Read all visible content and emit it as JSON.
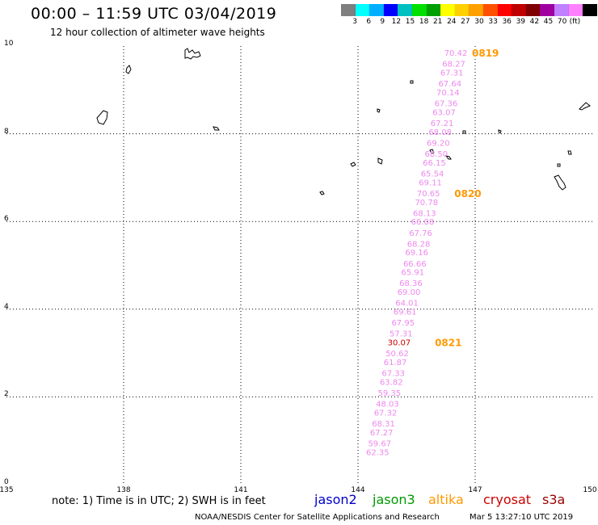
{
  "header": {
    "title": "00:00 – 11:59 UTC 03/04/2019",
    "subtitle": "12 hour collection of altimeter wave heights"
  },
  "colorbar": {
    "colors": [
      "#7f7f7f",
      "#00ffff",
      "#00b0ff",
      "#0000ff",
      "#00c0c0",
      "#00e000",
      "#00a000",
      "#ffff00",
      "#ffd000",
      "#ffa000",
      "#ff5000",
      "#ff0000",
      "#c00000",
      "#800000",
      "#a000a0",
      "#c080ff",
      "#ff80ff",
      "#000000"
    ],
    "labels": [
      "3",
      "6",
      "9",
      "12",
      "15",
      "18",
      "21",
      "24",
      "27",
      "30",
      "33",
      "36",
      "39",
      "42",
      "45",
      "70"
    ],
    "unit": "(ft)"
  },
  "map": {
    "lat_labels": [
      "10",
      "8",
      "6",
      "4",
      "2",
      "0"
    ],
    "lon_labels": [
      "135",
      "138",
      "141",
      "144",
      "147",
      "150"
    ],
    "lat_range": [
      0,
      10
    ],
    "lon_range": [
      135,
      150
    ],
    "track_color": "#ee88ee",
    "high_value_color": "#cc0000",
    "time_label_color": "#ff9900",
    "swh_values": [
      {
        "value": "70.42",
        "lon": 146.8,
        "lat": 9.85
      },
      {
        "value": "68.27",
        "lon": 146.75,
        "lat": 9.6
      },
      {
        "value": "67.31",
        "lon": 146.7,
        "lat": 9.4
      },
      {
        "value": "67.64",
        "lon": 146.65,
        "lat": 9.15
      },
      {
        "value": "70.14",
        "lon": 146.6,
        "lat": 8.95
      },
      {
        "value": "67.36",
        "lon": 146.55,
        "lat": 8.7
      },
      {
        "value": "63.07",
        "lon": 146.5,
        "lat": 8.5
      },
      {
        "value": "67.21",
        "lon": 146.45,
        "lat": 8.25
      },
      {
        "value": "68.08",
        "lon": 146.4,
        "lat": 8.05
      },
      {
        "value": "69.20",
        "lon": 146.35,
        "lat": 7.8
      },
      {
        "value": "68.50",
        "lon": 146.3,
        "lat": 7.55
      },
      {
        "value": "66.15",
        "lon": 146.25,
        "lat": 7.35
      },
      {
        "value": "65.54",
        "lon": 146.2,
        "lat": 7.1
      },
      {
        "value": "69.11",
        "lon": 146.15,
        "lat": 6.9
      },
      {
        "value": "70.65",
        "lon": 146.1,
        "lat": 6.65
      },
      {
        "value": "70.78",
        "lon": 146.05,
        "lat": 6.45
      },
      {
        "value": "68.13",
        "lon": 146.0,
        "lat": 6.2
      },
      {
        "value": "66.08",
        "lon": 145.95,
        "lat": 6.0
      },
      {
        "value": "67.76",
        "lon": 145.9,
        "lat": 5.75
      },
      {
        "value": "68.28",
        "lon": 145.85,
        "lat": 5.5
      },
      {
        "value": "69.16",
        "lon": 145.8,
        "lat": 5.3
      },
      {
        "value": "66.66",
        "lon": 145.75,
        "lat": 5.05
      },
      {
        "value": "65.91",
        "lon": 145.7,
        "lat": 4.85
      },
      {
        "value": "68.36",
        "lon": 145.65,
        "lat": 4.6
      },
      {
        "value": "69.00",
        "lon": 145.6,
        "lat": 4.4
      },
      {
        "value": "64.01",
        "lon": 145.55,
        "lat": 4.15
      },
      {
        "value": "69.61",
        "lon": 145.5,
        "lat": 3.95
      },
      {
        "value": "67.95",
        "lon": 145.45,
        "lat": 3.7
      },
      {
        "value": "57.31",
        "lon": 145.4,
        "lat": 3.45
      },
      {
        "value": "30.07",
        "lon": 145.35,
        "lat": 3.25,
        "high": true
      },
      {
        "value": "50.62",
        "lon": 145.3,
        "lat": 3.0
      },
      {
        "value": "61.87",
        "lon": 145.25,
        "lat": 2.8
      },
      {
        "value": "67.33",
        "lon": 145.2,
        "lat": 2.55
      },
      {
        "value": "63.82",
        "lon": 145.15,
        "lat": 2.35
      },
      {
        "value": "59.35",
        "lon": 145.1,
        "lat": 2.1
      },
      {
        "value": "48.03",
        "lon": 145.05,
        "lat": 1.85
      },
      {
        "value": "67.32",
        "lon": 145.0,
        "lat": 1.65
      },
      {
        "value": "68.31",
        "lon": 144.95,
        "lat": 1.4
      },
      {
        "value": "67.27",
        "lon": 144.9,
        "lat": 1.2
      },
      {
        "value": "59.67",
        "lon": 144.85,
        "lat": 0.95
      },
      {
        "value": "62.35",
        "lon": 144.8,
        "lat": 0.75
      }
    ],
    "time_labels": [
      {
        "value": "0819",
        "lon": 147.0,
        "lat": 9.85
      },
      {
        "value": "0820",
        "lon": 146.55,
        "lat": 6.65
      },
      {
        "value": "0821",
        "lon": 146.05,
        "lat": 3.25
      }
    ]
  },
  "footer": {
    "note": "note:  1) Time is in UTC;  2) SWH is in feet",
    "satellites": [
      {
        "name": "jason2",
        "color": "#0000cc"
      },
      {
        "name": "jason3",
        "color": "#009900"
      },
      {
        "name": "altika",
        "color": "#ff9900"
      },
      {
        "name": "cryosat",
        "color": "#cc0000"
      },
      {
        "name": "s3a",
        "color": "#990000"
      }
    ],
    "credit": "NOAA/NESDIS Center for Satellite Applications and Research",
    "generated": "Mar  5 13:27:10 UTC 2019"
  }
}
